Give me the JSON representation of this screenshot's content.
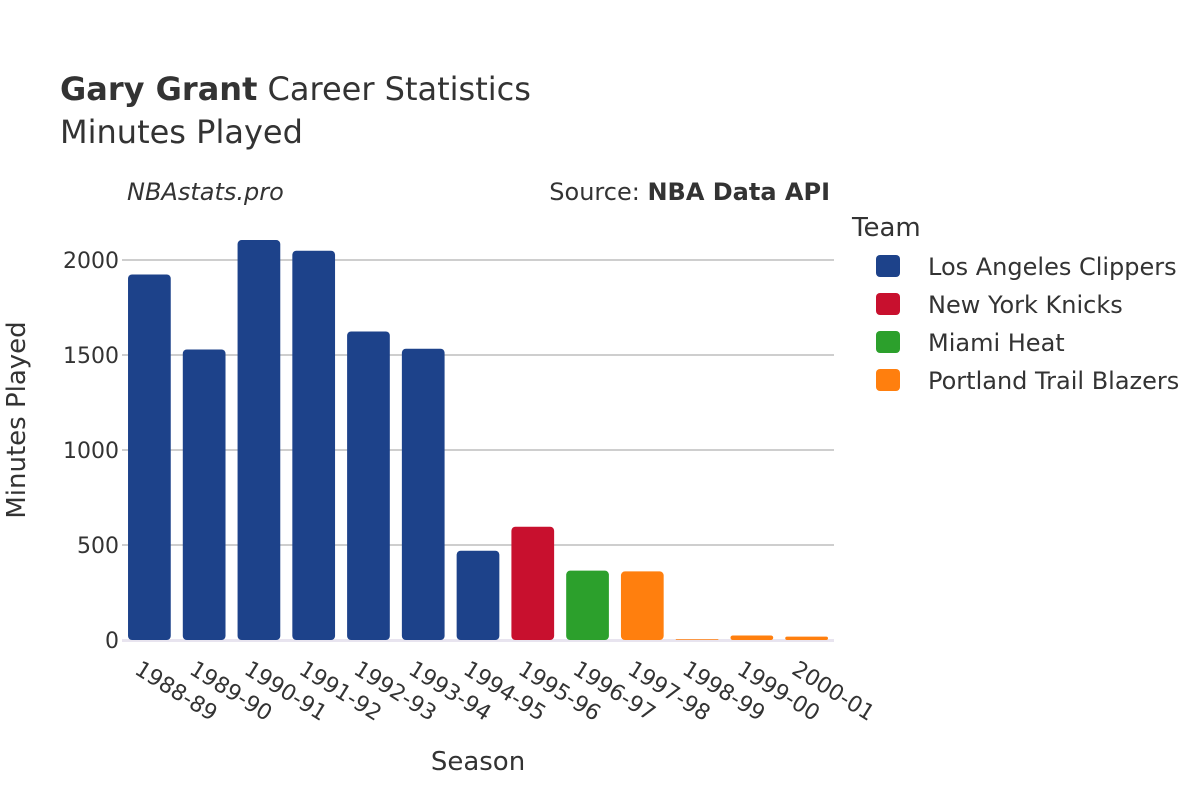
{
  "header": {
    "title_bold": "Gary Grant",
    "title_rest": " Career Statistics",
    "subtitle": "Minutes Played"
  },
  "credits": {
    "site": "NBAstats.pro",
    "source_label": "Source: ",
    "source_bold": "NBA Data API"
  },
  "legend": {
    "title": "Team",
    "items": [
      {
        "label": "Los Angeles Clippers",
        "color": "#1d428a"
      },
      {
        "label": "New York Knicks",
        "color": "#c8102e"
      },
      {
        "label": "Miami Heat",
        "color": "#2ca02c"
      },
      {
        "label": "Portland Trail Blazers",
        "color": "#ff7f0e"
      }
    ]
  },
  "chart_data": {
    "type": "bar",
    "xlabel": "Season",
    "ylabel": "Minutes Played",
    "ylim": [
      0,
      2200
    ],
    "yticks": [
      0,
      500,
      1000,
      1500,
      2000
    ],
    "grid": true,
    "legend_position": "right",
    "categories": [
      "1988-89",
      "1989-90",
      "1990-91",
      "1991-92",
      "1992-93",
      "1993-94",
      "1994-95",
      "1995-96",
      "1996-97",
      "1997-98",
      "1998-99",
      "1999-00",
      "2000-01"
    ],
    "values": [
      1924,
      1529,
      2105,
      2049,
      1624,
      1533,
      470,
      596,
      365,
      361,
      4,
      24,
      18
    ],
    "teams": [
      "Los Angeles Clippers",
      "Los Angeles Clippers",
      "Los Angeles Clippers",
      "Los Angeles Clippers",
      "Los Angeles Clippers",
      "Los Angeles Clippers",
      "Los Angeles Clippers",
      "New York Knicks",
      "Miami Heat",
      "Portland Trail Blazers",
      "Portland Trail Blazers",
      "Portland Trail Blazers",
      "Portland Trail Blazers"
    ]
  }
}
